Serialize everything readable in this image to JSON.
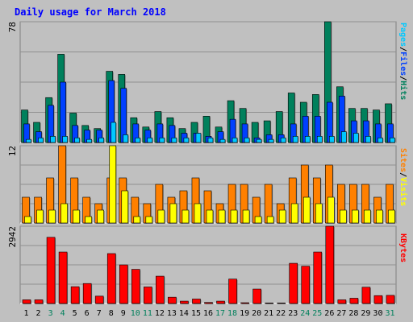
{
  "chart_data": {
    "type": "bar",
    "title": "Daily usage for March 2018",
    "categories": [
      "1",
      "2",
      "3",
      "4",
      "5",
      "6",
      "7",
      "8",
      "9",
      "10",
      "11",
      "12",
      "13",
      "14",
      "15",
      "16",
      "17",
      "18",
      "19",
      "20",
      "21",
      "22",
      "23",
      "24",
      "25",
      "26",
      "27",
      "28",
      "29",
      "30",
      "31"
    ],
    "weekend_days": [
      "3",
      "4",
      "10",
      "11",
      "17",
      "18",
      "24",
      "25",
      "31"
    ],
    "grid": true,
    "colors": {
      "background": "#c0c0c0",
      "frame": "#ffffff",
      "title": "#0000ff",
      "day_label": "#000000",
      "weekend_label": "#00805c",
      "hits": "#00805c",
      "files": "#0040ff",
      "pages": "#00c8ff",
      "visits": "#ffff00",
      "sites": "#ff8000",
      "kbytes": "#ff0000"
    },
    "panels": [
      {
        "id": "hits-files-pages",
        "max_label": "78",
        "ylim": [
          0,
          78
        ],
        "legend": [
          {
            "text": "Pages",
            "color": "#00c8ff"
          },
          {
            "text": "/",
            "color": "#000000"
          },
          {
            "text": "Files",
            "color": "#0040ff"
          },
          {
            "text": "/",
            "color": "#000000"
          },
          {
            "text": "Hits",
            "color": "#00805c"
          }
        ],
        "series": [
          {
            "name": "Hits",
            "color": "#00805c",
            "values": [
              21,
              13,
              29,
              57,
              19,
              11,
              9,
              46,
              44,
              16,
              10,
              20,
              16,
              9,
              13,
              17,
              10,
              27,
              22,
              13,
              14,
              20,
              32,
              26,
              31,
              78,
              36,
              22,
              22,
              21,
              25
            ]
          },
          {
            "name": "Files",
            "color": "#0040ff",
            "values": [
              12,
              7,
              24,
              39,
              11,
              8,
              8,
              40,
              35,
              12,
              8,
              12,
              11,
              6,
              6,
              4,
              7,
              15,
              12,
              3,
              5,
              5,
              12,
              17,
              17,
              26,
              30,
              14,
              14,
              12,
              12
            ]
          },
          {
            "name": "Pages",
            "color": "#00c8ff",
            "values": [
              2,
              3,
              4,
              4,
              3,
              2,
              3,
              13,
              5,
              3,
              3,
              3,
              3,
              3,
              6,
              3,
              2,
              3,
              3,
              2,
              2,
              3,
              4,
              4,
              4,
              4,
              7,
              6,
              4,
              3,
              3
            ]
          }
        ]
      },
      {
        "id": "visits-sites",
        "max_label": "12",
        "ylim": [
          0,
          12
        ],
        "legend": [
          {
            "text": "Sites",
            "color": "#ff8000"
          },
          {
            "text": "/",
            "color": "#000000"
          },
          {
            "text": "Visits",
            "color": "#ffff00"
          }
        ],
        "series": [
          {
            "name": "Sites",
            "color": "#ff8000",
            "values": [
              4,
              4,
              7,
              12,
              7,
              4,
              3,
              7,
              7,
              4,
              3,
              6,
              4,
              5,
              7,
              5,
              3,
              6,
              6,
              4,
              6,
              3,
              7,
              9,
              7,
              9,
              6,
              6,
              6,
              4,
              6
            ]
          },
          {
            "name": "Visits",
            "color": "#ffff00",
            "values": [
              1,
              2,
              2,
              3,
              2,
              1,
              2,
              12,
              5,
              1,
              1,
              2,
              3,
              2,
              3,
              2,
              2,
              2,
              2,
              1,
              1,
              2,
              3,
              4,
              3,
              4,
              2,
              2,
              2,
              2,
              2
            ]
          }
        ]
      },
      {
        "id": "kbytes",
        "max_label": "2942",
        "ylim": [
          0,
          2942
        ],
        "legend": [
          {
            "text": "KBytes",
            "color": "#ff0000"
          }
        ],
        "series": [
          {
            "name": "KBytes",
            "color": "#ff0000",
            "values": [
              140,
              140,
              2520,
              1960,
              640,
              760,
              280,
              1900,
              1470,
              1300,
              630,
              1040,
              240,
              90,
              170,
              40,
              90,
              930,
              30,
              550,
              20,
              20,
              1530,
              1420,
              1960,
              2942,
              140,
              200,
              620,
              300,
              310
            ]
          }
        ]
      }
    ]
  }
}
